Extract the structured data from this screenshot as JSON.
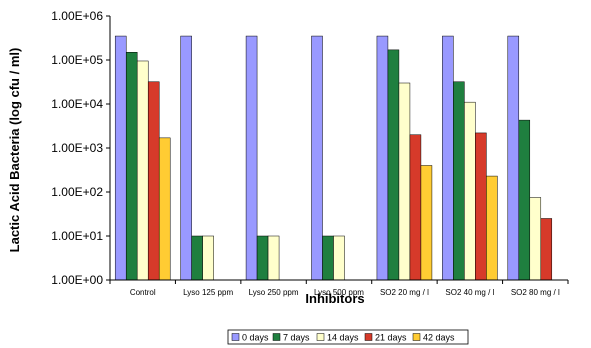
{
  "chart_data": {
    "type": "bar",
    "title": "",
    "xlabel": "Inhibitors",
    "ylabel": "Lactic Acid Bacteria (log cfu / ml)",
    "yscale": "log",
    "ylim": [
      1,
      1000000
    ],
    "yticks": [
      "1.00E+00",
      "1.00E+01",
      "1.00E+02",
      "1.00E+03",
      "1.00E+04",
      "1.00E+05",
      "1.00E+06"
    ],
    "grid": false,
    "legend_position": "bottom",
    "categories": [
      "Control",
      "Lyso 125 ppm",
      "Lyso 250 ppm",
      "Lyso 500 ppm",
      "SO2 20 mg / l",
      "SO2 40 mg / l",
      "SO2 80 mg / l"
    ],
    "series": [
      {
        "name": "0 days",
        "color": "#9999ff",
        "values": [
          350000,
          350000,
          350000,
          350000,
          350000,
          350000,
          350000
        ]
      },
      {
        "name": "7 days",
        "color": "#1f7f3f",
        "values": [
          150000,
          10,
          10,
          10,
          170000,
          32000,
          4300
        ]
      },
      {
        "name": "14 days",
        "color": "#ffffcc",
        "values": [
          95000,
          10,
          10,
          10,
          30000,
          11000,
          75
        ]
      },
      {
        "name": "21 days",
        "color": "#d63a2a",
        "values": [
          32000,
          null,
          null,
          null,
          2000,
          2200,
          25
        ]
      },
      {
        "name": "42 days",
        "color": "#ffcc33",
        "values": [
          1700,
          null,
          null,
          null,
          400,
          230,
          null
        ]
      }
    ]
  }
}
